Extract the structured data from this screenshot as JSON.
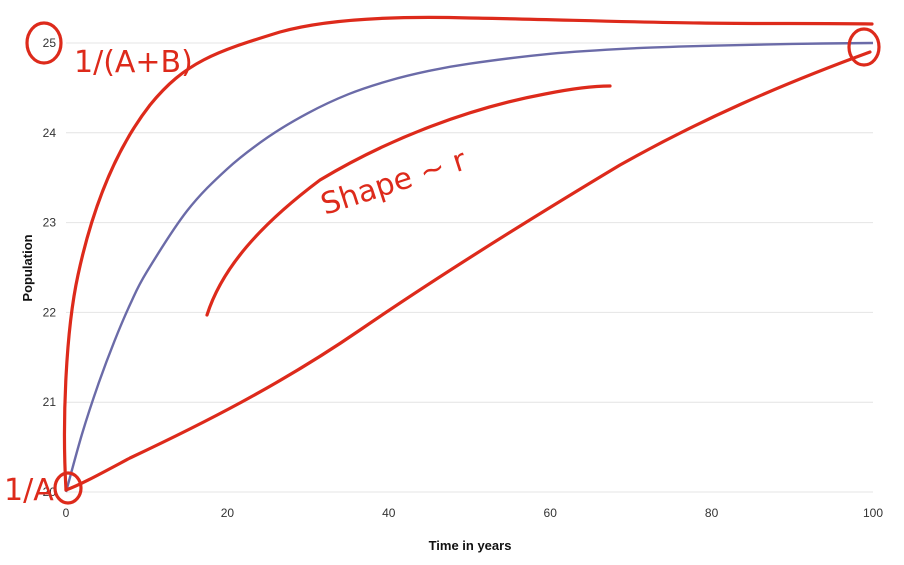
{
  "chart_data": {
    "type": "line",
    "xlabel": "Time in years",
    "ylabel": "Population",
    "xlim": [
      0,
      100
    ],
    "ylim": [
      20,
      25
    ],
    "x_ticks": [
      0,
      20,
      40,
      60,
      80,
      100
    ],
    "y_ticks": [
      20,
      21,
      22,
      23,
      24,
      25
    ],
    "grid": "horizontal",
    "series": [
      {
        "color": "#6b6ba8",
        "x": [
          0,
          2,
          4,
          6,
          8,
          10,
          15,
          20,
          25,
          30,
          35,
          40,
          45,
          50,
          60,
          70,
          80,
          90,
          100
        ],
        "y": [
          20.0,
          20.65,
          21.2,
          21.68,
          22.1,
          22.45,
          23.13,
          23.6,
          23.95,
          24.22,
          24.43,
          24.58,
          24.69,
          24.77,
          24.88,
          24.94,
          24.97,
          24.99,
          25.0
        ]
      }
    ]
  },
  "annotations": {
    "ink_color": "#dd2a1b",
    "label_top": "1/(A+B)",
    "label_bottom": "1/A",
    "label_shape": "Shape ~ r"
  }
}
